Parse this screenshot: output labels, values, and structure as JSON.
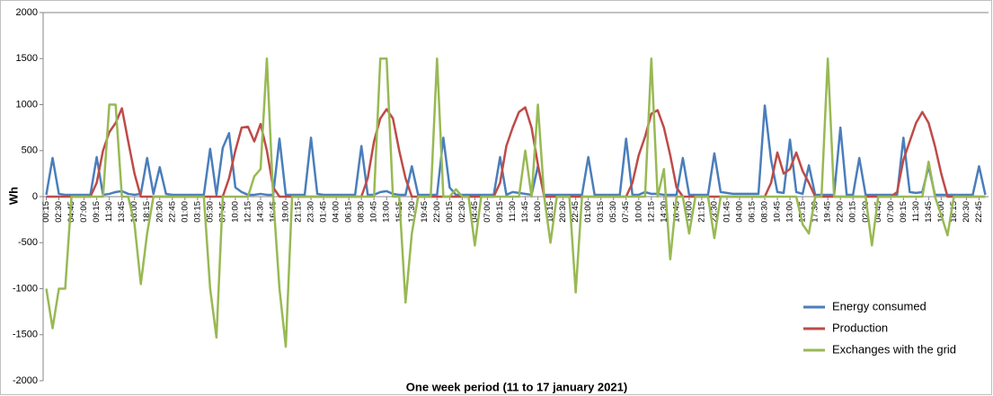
{
  "chart_data": {
    "type": "line",
    "x_label": "One week period (11 to 17 january 2021)",
    "y_label": "Wh",
    "ylim": [
      -2000,
      2000
    ],
    "yticks": [
      -2000,
      -1500,
      -1000,
      -500,
      0,
      500,
      1000,
      1500,
      2000
    ],
    "grid": false,
    "legend": "lower right",
    "categories": [
      "00:15",
      null,
      "02:30",
      null,
      "04:45",
      null,
      "07:00",
      null,
      "09:15",
      null,
      "11:30",
      null,
      "13:45",
      null,
      "16:00",
      null,
      "18:15",
      null,
      "20:30",
      null,
      "22:45",
      null,
      "01:00",
      null,
      "03:15",
      null,
      "05:30",
      null,
      "07:45",
      null,
      "10:00",
      null,
      "12:15",
      null,
      "14:30",
      null,
      "16:45",
      null,
      "19:00",
      null,
      "21:15",
      null,
      "23:30",
      null,
      "01:45",
      null,
      "04:00",
      null,
      "06:15",
      null,
      "08:30",
      null,
      "10:45",
      null,
      "13:00",
      null,
      "15:15",
      null,
      "17:30",
      null,
      "19:45",
      null,
      "22:00",
      null,
      "00:15",
      null,
      "02:30",
      null,
      "04:45",
      null,
      "07:00",
      null,
      "09:15",
      null,
      "11:30",
      null,
      "13:45",
      null,
      "16:00",
      null,
      "18:15",
      null,
      "20:30",
      null,
      "22:45",
      null,
      "01:00",
      null,
      "03:15",
      null,
      "05:30",
      null,
      "07:45",
      null,
      "10:00",
      null,
      "12:15",
      null,
      "14:30",
      null,
      "16:45",
      null,
      "19:00",
      null,
      "21:15",
      null,
      "23:30",
      null,
      "01:45",
      null,
      "04:00",
      null,
      "06:15",
      null,
      "08:30",
      null,
      "10:45",
      null,
      "13:00",
      null,
      "15:15",
      null,
      "17:30",
      null,
      "19:45",
      null,
      "22:00",
      null,
      "00:15",
      null,
      "02:30",
      null,
      "04:45",
      null,
      "07:00",
      null,
      "09:15",
      null,
      "11:30",
      null,
      "13:45",
      null,
      "16:00",
      null,
      "18:15",
      null,
      "20:30",
      null,
      "22:45",
      null
    ],
    "series": [
      {
        "name": "Energy consumed",
        "color": "#4a7ebb",
        "values": [
          20,
          420,
          30,
          20,
          20,
          20,
          20,
          20,
          430,
          20,
          30,
          50,
          60,
          30,
          20,
          30,
          420,
          30,
          320,
          30,
          20,
          20,
          20,
          20,
          20,
          20,
          520,
          20,
          530,
          690,
          100,
          50,
          20,
          20,
          30,
          20,
          20,
          630,
          20,
          20,
          20,
          20,
          640,
          30,
          20,
          20,
          20,
          20,
          20,
          20,
          550,
          20,
          20,
          50,
          60,
          30,
          20,
          20,
          330,
          20,
          20,
          20,
          20,
          640,
          100,
          20,
          20,
          20,
          20,
          20,
          20,
          20,
          430,
          20,
          50,
          40,
          30,
          20,
          330,
          20,
          20,
          20,
          20,
          20,
          20,
          20,
          430,
          20,
          20,
          20,
          20,
          20,
          630,
          20,
          20,
          50,
          30,
          30,
          20,
          20,
          20,
          420,
          20,
          20,
          20,
          20,
          470,
          50,
          40,
          30,
          30,
          30,
          30,
          30,
          990,
          400,
          50,
          40,
          620,
          50,
          30,
          340,
          20,
          20,
          20,
          20,
          750,
          20,
          20,
          420,
          20,
          20,
          20,
          20,
          20,
          20,
          640,
          50,
          40,
          50,
          330,
          20,
          20,
          20,
          20,
          20,
          20,
          20,
          330,
          20
        ]
      },
      {
        "name": "Production",
        "color": "#be4b48",
        "values": [
          0,
          0,
          0,
          0,
          0,
          0,
          0,
          0,
          150,
          500,
          700,
          800,
          960,
          600,
          250,
          0,
          0,
          0,
          0,
          0,
          0,
          0,
          0,
          0,
          0,
          0,
          0,
          0,
          0,
          200,
          500,
          750,
          760,
          600,
          790,
          500,
          100,
          0,
          0,
          0,
          0,
          0,
          0,
          0,
          0,
          0,
          0,
          0,
          0,
          0,
          0,
          200,
          600,
          850,
          950,
          850,
          500,
          200,
          0,
          0,
          0,
          0,
          0,
          0,
          0,
          0,
          0,
          0,
          0,
          0,
          0,
          0,
          150,
          550,
          750,
          920,
          970,
          750,
          350,
          0,
          0,
          0,
          0,
          0,
          0,
          0,
          0,
          0,
          0,
          0,
          0,
          0,
          0,
          150,
          450,
          650,
          900,
          940,
          750,
          450,
          100,
          0,
          0,
          0,
          0,
          0,
          0,
          0,
          0,
          0,
          0,
          0,
          0,
          0,
          0,
          150,
          480,
          250,
          300,
          480,
          280,
          150,
          0,
          0,
          0,
          0,
          0,
          0,
          0,
          0,
          0,
          0,
          0,
          0,
          0,
          50,
          400,
          600,
          800,
          920,
          800,
          550,
          250,
          0,
          0,
          0,
          0,
          0,
          0,
          0
        ]
      },
      {
        "name": "Exchanges with the grid",
        "color": "#98b954",
        "values": [
          -1000,
          -1430,
          -1000,
          -1000,
          0,
          0,
          0,
          0,
          0,
          0,
          1000,
          1000,
          0,
          0,
          -300,
          -950,
          -400,
          0,
          0,
          0,
          0,
          0,
          0,
          0,
          0,
          0,
          -1000,
          -1530,
          0,
          0,
          0,
          0,
          0,
          220,
          300,
          1500,
          0,
          -1000,
          -1630,
          0,
          0,
          0,
          0,
          0,
          0,
          0,
          0,
          0,
          0,
          0,
          0,
          0,
          0,
          1500,
          1500,
          0,
          0,
          -1150,
          -400,
          0,
          0,
          0,
          1500,
          0,
          0,
          80,
          0,
          0,
          -530,
          0,
          0,
          0,
          0,
          0,
          0,
          0,
          500,
          0,
          1000,
          0,
          -500,
          0,
          0,
          0,
          -1040,
          0,
          0,
          0,
          0,
          0,
          0,
          0,
          0,
          0,
          0,
          0,
          1500,
          0,
          300,
          -680,
          0,
          0,
          -400,
          0,
          0,
          0,
          -450,
          0,
          0,
          0,
          0,
          0,
          0,
          0,
          0,
          0,
          0,
          0,
          0,
          0,
          -300,
          -400,
          0,
          0,
          1500,
          0,
          0,
          0,
          0,
          0,
          0,
          -530,
          0,
          0,
          0,
          0,
          0,
          0,
          0,
          0,
          380,
          0,
          -200,
          -420,
          0,
          0,
          0,
          0,
          0,
          0
        ]
      }
    ]
  }
}
